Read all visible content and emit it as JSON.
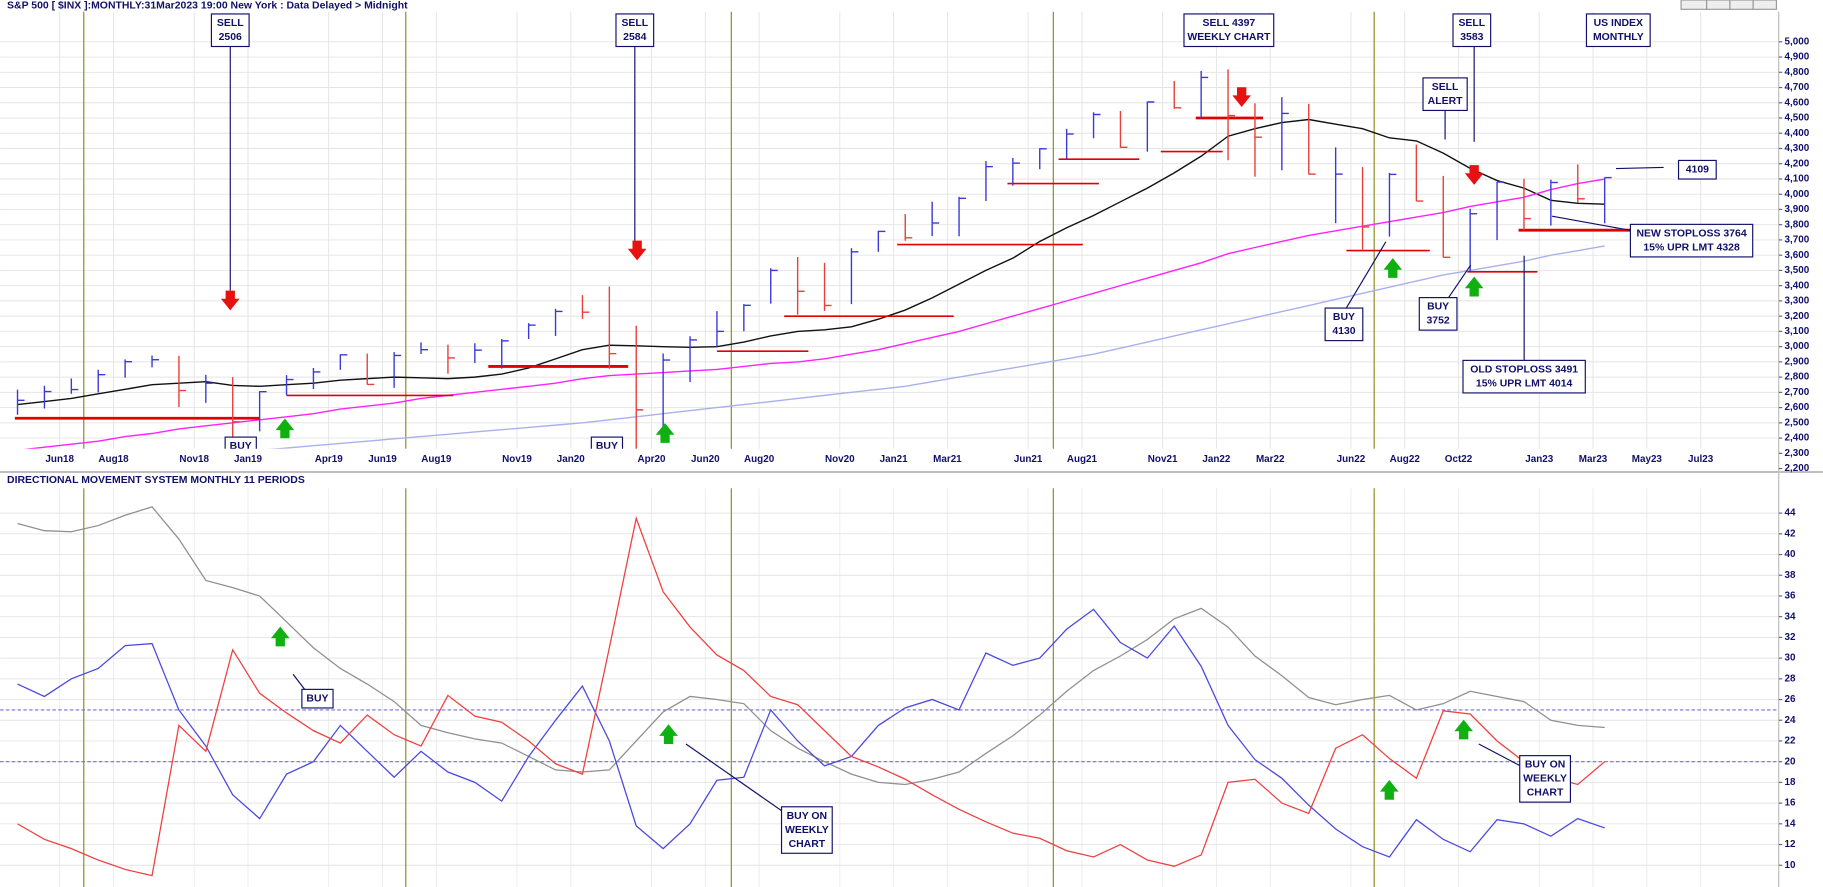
{
  "chart_data": [
    {
      "type": "ohlc",
      "title": "S&P 500 [ $INX ]:MONTHLY:31Mar2023 19:00 New York : Data Delayed > Midnight",
      "categories": [
        null,
        null,
        "Jun18",
        null,
        "Aug18",
        null,
        null,
        "Nov18",
        null,
        "Jan19",
        null,
        null,
        "Apr19",
        null,
        "Jun19",
        null,
        "Aug19",
        null,
        null,
        "Nov19",
        null,
        "Jan20",
        null,
        null,
        "Apr20",
        null,
        "Jun20",
        null,
        "Aug20",
        null,
        null,
        "Nov20",
        null,
        "Jan21",
        null,
        "Mar21",
        null,
        null,
        "Jun21",
        null,
        "Aug21",
        null,
        null,
        "Nov21",
        null,
        "Jan22",
        null,
        "Mar22",
        null,
        null,
        "Jun22",
        null,
        "Aug22",
        null,
        "Oct22",
        null,
        null,
        "Jan23",
        null,
        "Mar23",
        null,
        "May23",
        null,
        "Jul23"
      ],
      "high": [
        2718,
        2743,
        2791,
        2848,
        2916,
        2941,
        2940,
        2815,
        2800,
        2708,
        2813,
        2860,
        2949,
        2954,
        2964,
        3028,
        3013,
        3022,
        3050,
        3154,
        3248,
        3338,
        3394,
        3137,
        2955,
        3068,
        3233,
        3279,
        3514,
        3588,
        3550,
        3646,
        3760,
        3870,
        3951,
        3983,
        4218,
        4238,
        4302,
        4429,
        4538,
        4546,
        4608,
        4743,
        4809,
        4819,
        4596,
        4637,
        4593,
        4307,
        4178,
        4140,
        4325,
        4120,
        3905,
        4080,
        4101,
        4095,
        4195,
        4110,
        null,
        null,
        null,
        null
      ],
      "low": [
        2553,
        2594,
        2691,
        2699,
        2796,
        2864,
        2603,
        2631,
        2347,
        2444,
        2681,
        2722,
        2848,
        2751,
        2729,
        2952,
        2822,
        2892,
        2856,
        3050,
        3070,
        3182,
        2855,
        2192,
        2448,
        2767,
        2999,
        3101,
        3282,
        3210,
        3234,
        3279,
        3622,
        3695,
        3725,
        3724,
        3955,
        4056,
        4164,
        4233,
        4367,
        4305,
        4279,
        4560,
        4495,
        4223,
        4115,
        4157,
        4131,
        3810,
        3637,
        3722,
        3955,
        3585,
        3491,
        3699,
        3764,
        3794,
        3943,
        3809,
        null,
        null,
        null,
        null
      ],
      "close": [
        2648,
        2705,
        2718,
        2816,
        2901,
        2914,
        2712,
        2760,
        2507,
        2704,
        2784,
        2834,
        2946,
        2752,
        2942,
        2980,
        2926,
        2977,
        3038,
        3141,
        3231,
        3226,
        2954,
        2585,
        2912,
        3044,
        3100,
        3271,
        3500,
        3363,
        3270,
        3622,
        3756,
        3714,
        3811,
        3973,
        4181,
        4204,
        4298,
        4395,
        4523,
        4308,
        4605,
        4567,
        4766,
        4516,
        4374,
        4530,
        4132,
        4132,
        3785,
        4130,
        3955,
        3586,
        3872,
        4080,
        3840,
        4077,
        3970,
        4109,
        null,
        null,
        null,
        null
      ],
      "up_color": "#3a3ad8",
      "down_color": "#e8403a",
      "overlays": [
        {
          "color": "#111111",
          "values": [
            2620,
            2640,
            2660,
            2690,
            2720,
            2750,
            2760,
            2770,
            2745,
            2740,
            2750,
            2760,
            2780,
            2790,
            2800,
            2795,
            2790,
            2800,
            2820,
            2860,
            2920,
            2980,
            3010,
            3005,
            3000,
            2995,
            3000,
            3030,
            3070,
            3100,
            3110,
            3130,
            3180,
            3240,
            3320,
            3410,
            3500,
            3580,
            3690,
            3780,
            3860,
            3950,
            4040,
            4140,
            4250,
            4380,
            4430,
            4470,
            4490,
            4460,
            4430,
            4370,
            4350,
            4270,
            4170,
            4090,
            4040,
            3960,
            3940,
            3935,
            null,
            null,
            null,
            null
          ]
        },
        {
          "color": "#ff22ff",
          "values": [
            2320,
            2340,
            2360,
            2380,
            2410,
            2430,
            2460,
            2480,
            2500,
            2520,
            2540,
            2560,
            2590,
            2610,
            2630,
            2660,
            2680,
            2700,
            2720,
            2740,
            2760,
            2790,
            2810,
            2820,
            2830,
            2840,
            2850,
            2870,
            2890,
            2900,
            2920,
            2950,
            2980,
            3020,
            3060,
            3100,
            3150,
            3200,
            3250,
            3300,
            3350,
            3400,
            3450,
            3500,
            3550,
            3610,
            3650,
            3690,
            3730,
            3760,
            3790,
            3820,
            3850,
            3880,
            3920,
            3950,
            3980,
            4030,
            4070,
            4100,
            null,
            null,
            null,
            null
          ]
        },
        {
          "color": "#aab0ee",
          "values": [
            2200,
            2210,
            2225,
            2240,
            2255,
            2270,
            2285,
            2300,
            2310,
            2320,
            2335,
            2350,
            2365,
            2380,
            2395,
            2410,
            2425,
            2440,
            2455,
            2470,
            2485,
            2500,
            2520,
            2540,
            2560,
            2580,
            2600,
            2620,
            2640,
            2660,
            2680,
            2700,
            2720,
            2740,
            2770,
            2800,
            2830,
            2860,
            2890,
            2920,
            2950,
            2990,
            3030,
            3070,
            3110,
            3150,
            3190,
            3230,
            3270,
            3310,
            3350,
            3390,
            3430,
            3470,
            3500,
            3530,
            3560,
            3600,
            3630,
            3660,
            null,
            null,
            null,
            null
          ]
        }
      ],
      "stops": [
        {
          "level": 2530,
          "x": [
            -0.1,
            9
          ],
          "bold": true
        },
        {
          "level": 2680,
          "x": [
            10,
            16.2
          ],
          "bold": false
        },
        {
          "level": 2870,
          "x": [
            17.5,
            22.7
          ],
          "bold": true
        },
        {
          "level": 2970,
          "x": [
            26,
            29.4
          ],
          "bold": false
        },
        {
          "level": 3200,
          "x": [
            28.5,
            34.8
          ],
          "bold": false
        },
        {
          "level": 3670,
          "x": [
            32.7,
            39.6
          ],
          "bold": false
        },
        {
          "level": 4070,
          "x": [
            36.8,
            40.2
          ],
          "bold": false
        },
        {
          "level": 4230,
          "x": [
            38.7,
            41.7
          ],
          "bold": false
        },
        {
          "level": 4280,
          "x": [
            42.5,
            44.8
          ],
          "bold": false
        },
        {
          "level": 4500,
          "x": [
            43.8,
            46.3
          ],
          "bold": true
        },
        {
          "level": 3630,
          "x": [
            49.4,
            52.5
          ],
          "bold": false
        },
        {
          "level": 3491,
          "x": [
            53.9,
            56.5
          ],
          "bold": false
        },
        {
          "level": 3764,
          "x": [
            55.8,
            61.2
          ],
          "bold": true
        }
      ],
      "ylim": [
        2147,
        5198
      ],
      "yticks": [
        {
          "value": 2200,
          "label": "2,200"
        },
        {
          "value": 2300,
          "label": "2,300"
        },
        {
          "value": 2400,
          "label": "2,400"
        },
        {
          "value": 2500,
          "label": "2,500"
        },
        {
          "value": 2600,
          "label": "2,600"
        },
        {
          "value": 2700,
          "label": "2,700"
        },
        {
          "value": 2800,
          "label": "2,800"
        },
        {
          "value": 2900,
          "label": "2,900"
        },
        {
          "value": 3000,
          "label": "3,000"
        },
        {
          "value": 3100,
          "label": "3,100"
        },
        {
          "value": 3200,
          "label": "3,200"
        },
        {
          "value": 3300,
          "label": "3,300"
        },
        {
          "value": 3400,
          "label": "3,400"
        },
        {
          "value": 3500,
          "label": "3,500"
        },
        {
          "value": 3600,
          "label": "3,600"
        },
        {
          "value": 3700,
          "label": "3,700"
        },
        {
          "value": 3800,
          "label": "3,800"
        },
        {
          "value": 3900,
          "label": "3,900"
        },
        {
          "value": 4000,
          "label": "4,000"
        },
        {
          "value": 4100,
          "label": "4,100"
        },
        {
          "value": 4200,
          "label": "4,200"
        },
        {
          "value": 4300,
          "label": "4,300"
        },
        {
          "value": 4400,
          "label": "4,400"
        },
        {
          "value": 4500,
          "label": "4,500"
        },
        {
          "value": 4600,
          "label": "4,600"
        },
        {
          "value": 4700,
          "label": "4,700"
        },
        {
          "value": 4800,
          "label": "4,800"
        },
        {
          "value": 4900,
          "label": "4,900"
        },
        {
          "value": 5000,
          "label": "5,000"
        }
      ],
      "grid": true,
      "annotations": [
        {
          "lines": [
            "SELL",
            "2506"
          ]
        },
        {
          "lines": [
            "SELL",
            "2584"
          ]
        },
        {
          "lines": [
            "SELL 4397",
            "WEEKLY CHART"
          ]
        },
        {
          "lines": [
            "SELL",
            "3583"
          ]
        },
        {
          "lines": [
            "US INDEX",
            "MONTHLY"
          ]
        },
        {
          "lines": [
            "SELL",
            "ALERT"
          ]
        },
        {
          "lines": [
            "4109"
          ]
        },
        {
          "lines": [
            "NEW STOPLOSS 3764",
            "15% UPR LMT 4328"
          ]
        },
        {
          "lines": [
            "OLD STOPLOSS 3491",
            "15% UPR LMT 4014"
          ]
        },
        {
          "lines": [
            "BUY",
            "4130"
          ]
        },
        {
          "lines": [
            "BUY",
            "3752"
          ]
        },
        {
          "lines": [
            "BUY"
          ]
        },
        {
          "lines": [
            "BUY"
          ]
        }
      ]
    },
    {
      "type": "line",
      "title": "DIRECTIONAL MOVEMENT SYSTEM MONTHLY 11 PERIODS",
      "series": [
        {
          "color": "#909090",
          "values": [
            43.0,
            42.3,
            42.2,
            42.8,
            43.8,
            44.6,
            41.5,
            37.5,
            36.8,
            36.0,
            33.5,
            31.0,
            29.0,
            27.5,
            25.8,
            23.5,
            22.8,
            22.2,
            21.8,
            20.5,
            19.2,
            19.0,
            19.2,
            22.0,
            24.8,
            26.3,
            26.0,
            25.6,
            23.0,
            21.3,
            20.0,
            18.8,
            18.0,
            17.8,
            18.3,
            19.0,
            20.8,
            22.5,
            24.5,
            26.8,
            28.8,
            30.2,
            31.8,
            33.8,
            34.8,
            33.0,
            30.2,
            28.3,
            26.2,
            25.5,
            26.0,
            26.4,
            25.0,
            25.6,
            26.8,
            26.3,
            25.8,
            24.0,
            23.5,
            23.3
          ]
        },
        {
          "color": "#4a4ae0",
          "values": [
            27.5,
            26.3,
            28,
            29,
            31.2,
            31.4,
            25,
            21.5,
            16.8,
            14.5,
            18.8,
            20,
            23.5,
            21,
            18.5,
            21,
            19,
            18,
            16.2,
            20.5,
            24,
            27.3,
            22,
            13.8,
            11.6,
            14,
            18.2,
            18.5,
            25,
            22,
            19.6,
            20.5,
            23.5,
            25.2,
            26,
            25,
            30.5,
            29.3,
            30,
            32.8,
            34.7,
            31.5,
            30,
            33.1,
            29.2,
            23.5,
            20.2,
            18.4,
            15.8,
            13.5,
            11.8,
            10.8,
            14.4,
            12.5,
            11.3,
            14.4,
            14,
            12.8,
            14.5,
            13.6
          ]
        },
        {
          "color": "#f04040",
          "values": [
            14,
            12.5,
            11.6,
            10.5,
            9.6,
            9.0,
            23.5,
            21,
            30.8,
            26.6,
            24.7,
            23,
            21.8,
            24.5,
            22.6,
            21.5,
            26.4,
            24.4,
            23.8,
            22,
            19.8,
            18.8,
            31,
            43.5,
            36.4,
            33,
            30.3,
            28.8,
            26.3,
            25.5,
            23,
            20.5,
            19.5,
            18.3,
            16.8,
            15.4,
            14.2,
            13.1,
            12.6,
            11.4,
            10.8,
            12,
            10.5,
            9.9,
            11,
            18,
            18.3,
            16,
            15,
            21.3,
            22.6,
            20.3,
            18.4,
            24.9,
            24.6,
            22,
            20,
            18.5,
            17.8,
            20
          ]
        }
      ],
      "hlines": [
        25,
        20
      ],
      "ylim": [
        7.9,
        46.4
      ],
      "yticks": [
        10,
        12,
        14,
        16,
        18,
        20,
        22,
        24,
        26,
        28,
        30,
        32,
        34,
        36,
        38,
        40,
        42,
        44
      ],
      "grid": true,
      "annotations": [
        {
          "lines": [
            "BUY"
          ]
        },
        {
          "lines": [
            "BUY ON",
            "WEEKLY",
            "CHART"
          ]
        },
        {
          "lines": [
            "BUY ON",
            "WEEKLY",
            "CHART"
          ]
        }
      ]
    }
  ]
}
